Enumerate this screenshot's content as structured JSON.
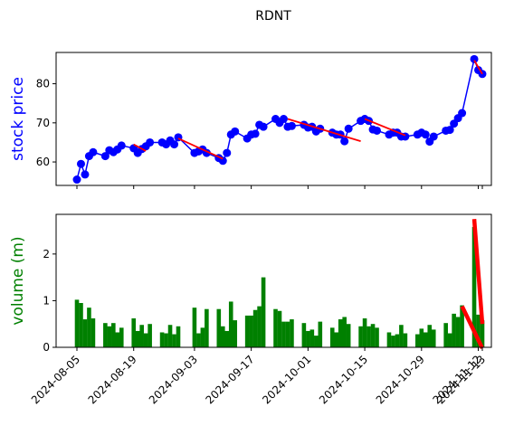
{
  "title": "RDNT",
  "chart_data": [
    {
      "type": "line",
      "ylabel": "stock price",
      "ylabel_color": "#0000ff",
      "ylim": [
        54,
        88
      ],
      "yticks": [
        60,
        70,
        80
      ],
      "line_color": "#0000ff",
      "trend_color": "#ff0000",
      "x": [
        "2024-08-05",
        "2024-08-06",
        "2024-08-07",
        "2024-08-08",
        "2024-08-09",
        "2024-08-12",
        "2024-08-13",
        "2024-08-14",
        "2024-08-15",
        "2024-08-16",
        "2024-08-19",
        "2024-08-20",
        "2024-08-21",
        "2024-08-22",
        "2024-08-23",
        "2024-08-26",
        "2024-08-27",
        "2024-08-28",
        "2024-08-29",
        "2024-08-30",
        "2024-09-03",
        "2024-09-04",
        "2024-09-05",
        "2024-09-06",
        "2024-09-09",
        "2024-09-10",
        "2024-09-11",
        "2024-09-12",
        "2024-09-13",
        "2024-09-16",
        "2024-09-17",
        "2024-09-18",
        "2024-09-19",
        "2024-09-20",
        "2024-09-23",
        "2024-09-24",
        "2024-09-25",
        "2024-09-26",
        "2024-09-27",
        "2024-09-30",
        "2024-10-01",
        "2024-10-02",
        "2024-10-03",
        "2024-10-04",
        "2024-10-07",
        "2024-10-08",
        "2024-10-09",
        "2024-10-10",
        "2024-10-11",
        "2024-10-14",
        "2024-10-15",
        "2024-10-16",
        "2024-10-17",
        "2024-10-18",
        "2024-10-21",
        "2024-10-22",
        "2024-10-23",
        "2024-10-24",
        "2024-10-25",
        "2024-10-28",
        "2024-10-29",
        "2024-10-30",
        "2024-10-31",
        "2024-11-01",
        "2024-11-04",
        "2024-11-05",
        "2024-11-06",
        "2024-11-07",
        "2024-11-08",
        "2024-11-11",
        "2024-11-12",
        "2024-11-13"
      ],
      "values": [
        55.5,
        59.5,
        56.8,
        61.5,
        62.5,
        61.5,
        63,
        62.5,
        63.2,
        64.2,
        63.5,
        62.3,
        63.3,
        64,
        65,
        65,
        64.5,
        65.5,
        64.5,
        66.3,
        62.3,
        62.7,
        63.2,
        62.3,
        61,
        60.3,
        62.3,
        67,
        67.8,
        66,
        67,
        67.2,
        69.5,
        69,
        71,
        70,
        71,
        69,
        69.2,
        69.5,
        68.8,
        69,
        67.8,
        68.5,
        67.5,
        67,
        67,
        65.3,
        68.5,
        70.5,
        71,
        70.5,
        68.3,
        68,
        67,
        67.5,
        67.5,
        66.5,
        66.5,
        67,
        67.5,
        67,
        65.2,
        66.5,
        68,
        68.2,
        69.8,
        71.2,
        72.5,
        86.3,
        83.5,
        82.5
      ],
      "trends": [
        {
          "from": "2024-08-19",
          "to": "2024-08-22",
          "y": [
            64.5,
            62.8
          ]
        },
        {
          "from": "2024-08-30",
          "to": "2024-09-10",
          "y": [
            66.0,
            60.8
          ]
        },
        {
          "from": "2024-09-26",
          "to": "2024-10-14",
          "y": [
            71.0,
            65.3
          ]
        },
        {
          "from": "2024-10-15",
          "to": "2024-10-25",
          "y": [
            71.0,
            66.8
          ]
        },
        {
          "from": "2024-11-11",
          "to": "2024-11-13",
          "y": [
            86.0,
            82.5
          ]
        }
      ]
    },
    {
      "type": "bar",
      "ylabel": "volume (m)",
      "ylabel_color": "#008000",
      "ylim": [
        0,
        2.85
      ],
      "yticks": [
        0,
        1,
        2
      ],
      "bar_color": "#008000",
      "trend_color": "#ff0000",
      "values": [
        1.02,
        0.95,
        0.6,
        0.85,
        0.62,
        0.52,
        0.45,
        0.52,
        0.32,
        0.42,
        0.62,
        0.35,
        0.48,
        0.3,
        0.5,
        0.32,
        0.3,
        0.48,
        0.28,
        0.45,
        0.85,
        0.3,
        0.42,
        0.82,
        0.82,
        0.45,
        0.35,
        0.98,
        0.58,
        0.68,
        0.68,
        0.8,
        0.88,
        1.5,
        0.82,
        0.78,
        0.55,
        0.55,
        0.6,
        0.52,
        0.35,
        0.38,
        0.25,
        0.55,
        0.42,
        0.32,
        0.6,
        0.65,
        0.5,
        0.45,
        0.62,
        0.45,
        0.5,
        0.42,
        0.32,
        0.25,
        0.28,
        0.48,
        0.3,
        0.28,
        0.4,
        0.32,
        0.48,
        0.38,
        0.52,
        0.3,
        0.72,
        0.65,
        0.9,
        2.58,
        0.7,
        0.58
      ],
      "trends": [
        {
          "from": "2024-11-08",
          "to": "2024-11-13",
          "y": [
            0.88,
            -0.02
          ]
        },
        {
          "from": "2024-11-11",
          "to": "2024-11-13",
          "y": [
            2.75,
            0.5
          ]
        }
      ]
    }
  ],
  "xticks": [
    "2024-08-05",
    "2024-08-19",
    "2024-09-03",
    "2024-09-17",
    "2024-10-01",
    "2024-10-15",
    "2024-10-29",
    "2024-11-12",
    "2024-11-13"
  ]
}
